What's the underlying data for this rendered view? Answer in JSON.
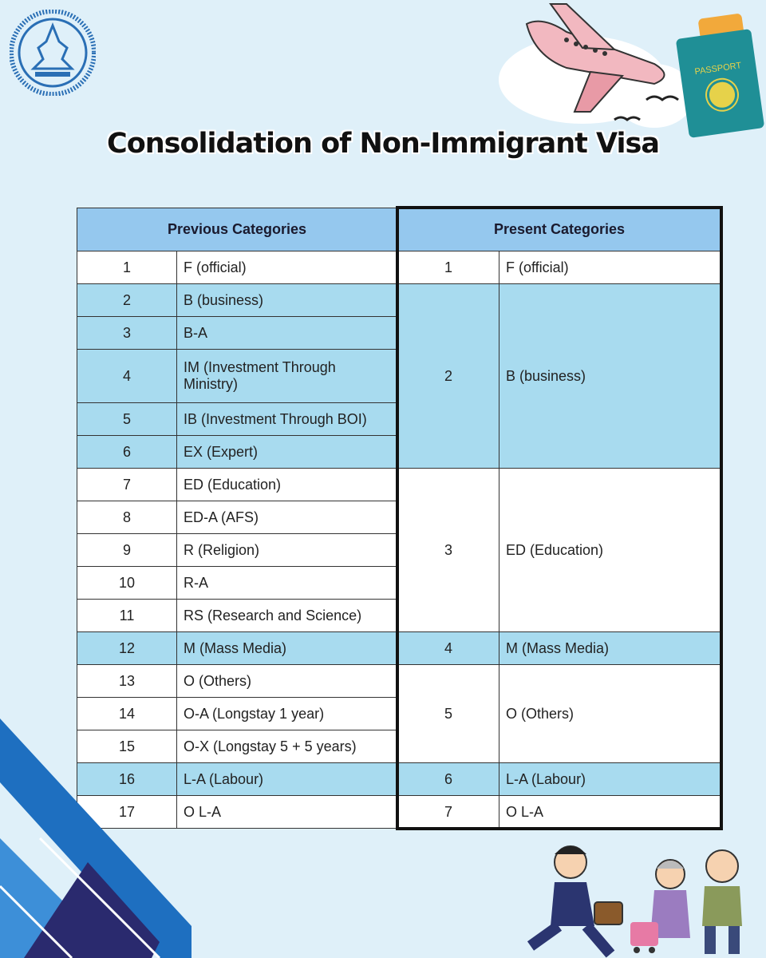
{
  "title": "Consolidation of Non-Immigrant Visa",
  "previous": {
    "header": "Previous Categories",
    "rows": [
      {
        "no": "1",
        "name": "F (official)"
      },
      {
        "no": "2",
        "name": "B (business)"
      },
      {
        "no": "3",
        "name": "B-A"
      },
      {
        "no": "4",
        "name": "IM (Investment Through Ministry)"
      },
      {
        "no": "5",
        "name": "IB (Investment Through BOI)"
      },
      {
        "no": "6",
        "name": "EX (Expert)"
      },
      {
        "no": "7",
        "name": "ED (Education)"
      },
      {
        "no": "8",
        "name": "ED-A (AFS)"
      },
      {
        "no": "9",
        "name": "R (Religion)"
      },
      {
        "no": "10",
        "name": "R-A"
      },
      {
        "no": "11",
        "name": "RS (Research and Science)"
      },
      {
        "no": "12",
        "name": "M (Mass Media)"
      },
      {
        "no": "13",
        "name": "O (Others)"
      },
      {
        "no": "14",
        "name": "O-A (Longstay 1 year)"
      },
      {
        "no": "15",
        "name": "O-X (Longstay 5 + 5 years)"
      },
      {
        "no": "16",
        "name": "L-A (Labour)"
      },
      {
        "no": "17",
        "name": "O L-A"
      }
    ]
  },
  "present": {
    "header": "Present Categories",
    "rows": [
      {
        "no": "1",
        "name": "F (official)"
      },
      {
        "no": "2",
        "name": "B (business)"
      },
      {
        "no": "3",
        "name": "ED (Education)"
      },
      {
        "no": "4",
        "name": "M (Mass Media)"
      },
      {
        "no": "5",
        "name": "O (Others)"
      },
      {
        "no": "6",
        "name": "L-A (Labour)"
      },
      {
        "no": "7",
        "name": "O L-A"
      }
    ]
  },
  "passport_label": "PASSPORT",
  "colors": {
    "background": "#dff0f9",
    "header": "#95c8ee",
    "highlight": "#a8dbef",
    "passport": "#1f8f96"
  }
}
